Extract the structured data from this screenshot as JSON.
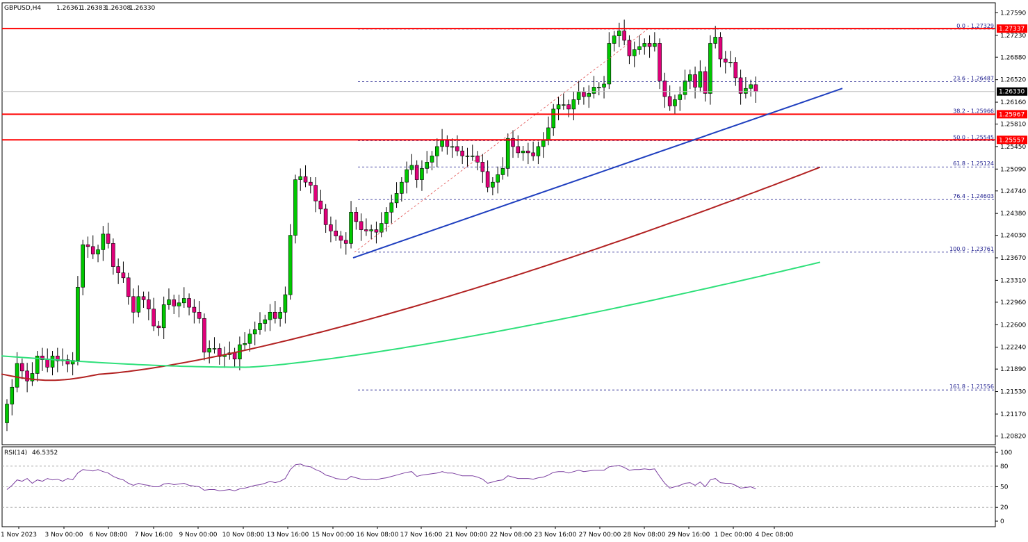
{
  "header": {
    "symbol": "GBPUSD,H4",
    "open": "1.26361",
    "high": "1.26383",
    "low": "1.26308",
    "close": "1.26330"
  },
  "rsi_header": {
    "name": "RSI(14)",
    "value": "46.5352"
  },
  "colors": {
    "bull": "#00c800",
    "bear": "#e0007a",
    "support_line": "#ff0000",
    "trendline": "#1f3fbf",
    "ma_red": "#b22222",
    "ma_green": "#2ee07a",
    "fib": "#1a1a8c",
    "rsi": "#7b3fa0"
  },
  "chart_data": [
    {
      "type": "candlestick",
      "symbol": "GBPUSD",
      "timeframe": "H4",
      "y_ticks": [
        "1.27590",
        "1.27230",
        "1.26880",
        "1.26520",
        "1.26160",
        "1.25810",
        "1.25450",
        "1.25090",
        "1.24740",
        "1.24380",
        "1.24030",
        "1.23670",
        "1.23310",
        "1.22960",
        "1.22600",
        "1.22240",
        "1.21890",
        "1.21530",
        "1.21170",
        "1.20820"
      ],
      "ylim": [
        1.2068,
        1.2775
      ],
      "x_ticks": [
        "1 Nov 2023",
        "3 Nov 00:00",
        "6 Nov 08:00",
        "7 Nov 16:00",
        "9 Nov 00:00",
        "10 Nov 08:00",
        "13 Nov 16:00",
        "15 Nov 00:00",
        "16 Nov 08:00",
        "17 Nov 16:00",
        "21 Nov 00:00",
        "22 Nov 08:00",
        "23 Nov 16:00",
        "27 Nov 00:00",
        "28 Nov 08:00",
        "29 Nov 16:00",
        "1 Dec 00:00",
        "4 Dec 08:00"
      ],
      "closes": [
        1.2133,
        1.216,
        1.2198,
        1.2186,
        1.217,
        1.2182,
        1.221,
        1.2204,
        1.2192,
        1.221,
        1.2202,
        1.2204,
        1.2197,
        1.2203,
        1.232,
        1.2388,
        1.2385,
        1.2373,
        1.238,
        1.2405,
        1.239,
        1.2353,
        1.2343,
        1.2335,
        1.2305,
        1.228,
        1.2305,
        1.23,
        1.2285,
        1.2258,
        1.2255,
        1.2292,
        1.23,
        1.229,
        1.2295,
        1.2302,
        1.2288,
        1.228,
        1.227,
        1.2216,
        1.2222,
        1.2222,
        1.2209,
        1.2212,
        1.2215,
        1.2205,
        1.2228,
        1.223,
        1.2245,
        1.2252,
        1.2262,
        1.2268,
        1.228,
        1.227,
        1.228,
        1.2308,
        1.2403,
        1.2492,
        1.2497,
        1.2488,
        1.2483,
        1.2458,
        1.2445,
        1.242,
        1.241,
        1.2402,
        1.2395,
        1.239,
        1.244,
        1.2425,
        1.2412,
        1.241,
        1.2412,
        1.2408,
        1.2422,
        1.244,
        1.2455,
        1.247,
        1.2488,
        1.2508,
        1.2515,
        1.2492,
        1.251,
        1.252,
        1.253,
        1.2545,
        1.2555,
        1.2545,
        1.2545,
        1.2538,
        1.253,
        1.253,
        1.253,
        1.252,
        1.2505,
        1.248,
        1.2488,
        1.25,
        1.251,
        1.2558,
        1.2545,
        1.2535,
        1.2538,
        1.2535,
        1.253,
        1.2545,
        1.2555,
        1.2575,
        1.2605,
        1.2612,
        1.2612,
        1.2605,
        1.262,
        1.2632,
        1.2625,
        1.263,
        1.264,
        1.264,
        1.2645,
        1.271,
        1.2722,
        1.273,
        1.2715,
        1.269,
        1.27,
        1.2705,
        1.271,
        1.2705,
        1.271,
        1.265,
        1.2625,
        1.261,
        1.262,
        1.2628,
        1.265,
        1.266,
        1.264,
        1.2665,
        1.263,
        1.271,
        1.272,
        1.2685,
        1.268,
        1.268,
        1.2655,
        1.263,
        1.2638,
        1.2644,
        1.2633
      ],
      "last_price": "1.26330",
      "horizontal_levels": [
        "1.27337",
        "1.25967",
        "1.25557"
      ],
      "fibonacci": [
        {
          "level": "0.0",
          "price": "1.27329"
        },
        {
          "level": "23.6",
          "price": "1.26487"
        },
        {
          "level": "38.2",
          "price": "1.25966"
        },
        {
          "level": "50.0",
          "price": "1.25545"
        },
        {
          "level": "61.8",
          "price": "1.25124"
        },
        {
          "level": "76.4",
          "price": "1.24603"
        },
        {
          "level": "100.0",
          "price": "1.23761"
        },
        {
          "level": "161.8",
          "price": "1.21556"
        }
      ],
      "trendline": {
        "from_price": 1.2367,
        "to_price": 1.2638
      },
      "moving_averages": [
        {
          "color": "red",
          "start": 1.2181,
          "end": 1.2512
        },
        {
          "color": "green",
          "start": 1.221,
          "end": 1.236
        }
      ]
    },
    {
      "type": "line",
      "name": "RSI(14)",
      "ylim": [
        0,
        100
      ],
      "y_ticks": [
        "100",
        "80",
        "50",
        "20",
        "0"
      ],
      "levels": [
        80,
        50,
        20
      ],
      "values": [
        46,
        52,
        60,
        58,
        62,
        55,
        60,
        58,
        62,
        60,
        61,
        58,
        62,
        60,
        70,
        75,
        74,
        73,
        75,
        72,
        70,
        65,
        62,
        60,
        55,
        52,
        55,
        53,
        52,
        50,
        50,
        54,
        55,
        53,
        54,
        55,
        52,
        51,
        50,
        45,
        46,
        46,
        44,
        45,
        46,
        44,
        47,
        48,
        50,
        52,
        53,
        55,
        58,
        56,
        58,
        62,
        75,
        82,
        83,
        80,
        79,
        75,
        72,
        67,
        65,
        62,
        61,
        60,
        65,
        63,
        61,
        60,
        61,
        60,
        62,
        63,
        65,
        67,
        69,
        71,
        72,
        65,
        67,
        68,
        69,
        70,
        72,
        70,
        70,
        68,
        66,
        66,
        66,
        64,
        61,
        55,
        57,
        59,
        60,
        66,
        64,
        62,
        62,
        62,
        61,
        63,
        64,
        67,
        71,
        72,
        72,
        70,
        72,
        74,
        72,
        73,
        74,
        74,
        74,
        79,
        80,
        81,
        78,
        74,
        75,
        75,
        76,
        75,
        76,
        65,
        55,
        48,
        50,
        52,
        55,
        56,
        52,
        57,
        50,
        60,
        62,
        56,
        55,
        55,
        52,
        48,
        49,
        50,
        47
      ]
    }
  ]
}
